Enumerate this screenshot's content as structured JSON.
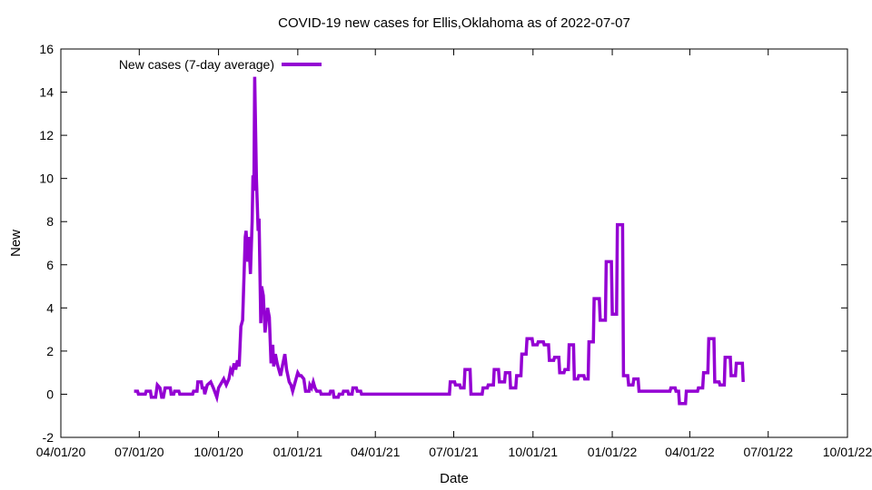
{
  "chart_data": {
    "type": "line",
    "title": "COVID-19 new cases for Ellis,Oklahoma as of 2022-07-07",
    "xlabel": "Date",
    "ylabel": "New",
    "xlim": [
      "2020-04-01",
      "2022-10-01"
    ],
    "ylim": [
      -2,
      16
    ],
    "x_ticks": [
      "04/01/20",
      "07/01/20",
      "10/01/20",
      "01/01/21",
      "04/01/21",
      "07/01/21",
      "10/01/21",
      "01/01/22",
      "04/01/22",
      "07/01/22",
      "10/01/22"
    ],
    "y_ticks": [
      -2,
      0,
      2,
      4,
      6,
      8,
      10,
      12,
      14,
      16
    ],
    "grid": false,
    "legend_position": "top-left",
    "series": [
      {
        "name": "New cases (7-day average)",
        "color": "#9400d3",
        "points": [
          [
            "2020-06-25",
            0.14
          ],
          [
            "2020-06-29",
            0.14
          ],
          [
            "2020-06-30",
            0.0
          ],
          [
            "2020-07-08",
            0.0
          ],
          [
            "2020-07-09",
            0.14
          ],
          [
            "2020-07-14",
            0.14
          ],
          [
            "2020-07-15",
            -0.14
          ],
          [
            "2020-07-20",
            -0.14
          ],
          [
            "2020-07-22",
            0.43
          ],
          [
            "2020-07-25",
            0.29
          ],
          [
            "2020-07-27",
            -0.14
          ],
          [
            "2020-07-29",
            -0.14
          ],
          [
            "2020-07-31",
            0.29
          ],
          [
            "2020-08-06",
            0.29
          ],
          [
            "2020-08-07",
            0.0
          ],
          [
            "2020-08-10",
            0.0
          ],
          [
            "2020-08-11",
            0.14
          ],
          [
            "2020-08-16",
            0.14
          ],
          [
            "2020-08-17",
            0.0
          ],
          [
            "2020-09-01",
            0.0
          ],
          [
            "2020-09-02",
            0.14
          ],
          [
            "2020-09-06",
            0.14
          ],
          [
            "2020-09-07",
            0.57
          ],
          [
            "2020-09-11",
            0.57
          ],
          [
            "2020-09-12",
            0.29
          ],
          [
            "2020-09-14",
            0.29
          ],
          [
            "2020-09-15",
            0.0
          ],
          [
            "2020-09-18",
            0.43
          ],
          [
            "2020-09-22",
            0.57
          ],
          [
            "2020-09-25",
            0.29
          ],
          [
            "2020-09-29",
            -0.14
          ],
          [
            "2020-10-01",
            0.29
          ],
          [
            "2020-10-05",
            0.57
          ],
          [
            "2020-10-07",
            0.71
          ],
          [
            "2020-10-10",
            0.43
          ],
          [
            "2020-10-13",
            0.71
          ],
          [
            "2020-10-15",
            1.14
          ],
          [
            "2020-10-17",
            1.0
          ],
          [
            "2020-10-19",
            1.43
          ],
          [
            "2020-10-21",
            1.14
          ],
          [
            "2020-10-23",
            1.57
          ],
          [
            "2020-10-25",
            1.29
          ],
          [
            "2020-10-27",
            3.14
          ],
          [
            "2020-10-29",
            3.43
          ],
          [
            "2020-11-01",
            7.29
          ],
          [
            "2020-11-02",
            7.57
          ],
          [
            "2020-11-04",
            6.14
          ],
          [
            "2020-11-05",
            7.29
          ],
          [
            "2020-11-07",
            5.57
          ],
          [
            "2020-11-09",
            8.0
          ],
          [
            "2020-11-10",
            10.14
          ],
          [
            "2020-11-11",
            9.43
          ],
          [
            "2020-11-12",
            14.71
          ],
          [
            "2020-11-14",
            10.0
          ],
          [
            "2020-11-16",
            7.57
          ],
          [
            "2020-11-17",
            8.14
          ],
          [
            "2020-11-19",
            3.29
          ],
          [
            "2020-11-20",
            5.0
          ],
          [
            "2020-11-22",
            4.57
          ],
          [
            "2020-11-24",
            2.86
          ],
          [
            "2020-11-27",
            4.0
          ],
          [
            "2020-11-29",
            3.57
          ],
          [
            "2020-12-01",
            1.43
          ],
          [
            "2020-12-03",
            2.29
          ],
          [
            "2020-12-04",
            1.29
          ],
          [
            "2020-12-06",
            1.86
          ],
          [
            "2020-12-08",
            1.43
          ],
          [
            "2020-12-10",
            1.14
          ],
          [
            "2020-12-12",
            0.86
          ],
          [
            "2020-12-14",
            1.29
          ],
          [
            "2020-12-17",
            1.86
          ],
          [
            "2020-12-19",
            1.14
          ],
          [
            "2020-12-22",
            0.57
          ],
          [
            "2020-12-24",
            0.43
          ],
          [
            "2020-12-26",
            0.14
          ],
          [
            "2020-12-29",
            0.57
          ],
          [
            "2021-01-01",
            1.0
          ],
          [
            "2021-01-03",
            0.86
          ],
          [
            "2021-01-05",
            0.86
          ],
          [
            "2021-01-08",
            0.71
          ],
          [
            "2021-01-10",
            0.14
          ],
          [
            "2021-01-14",
            0.14
          ],
          [
            "2021-01-15",
            0.43
          ],
          [
            "2021-01-17",
            0.29
          ],
          [
            "2021-01-19",
            0.57
          ],
          [
            "2021-01-21",
            0.29
          ],
          [
            "2021-01-23",
            0.14
          ],
          [
            "2021-01-27",
            0.14
          ],
          [
            "2021-01-28",
            0.0
          ],
          [
            "2021-02-07",
            0.0
          ],
          [
            "2021-02-08",
            0.14
          ],
          [
            "2021-02-11",
            0.14
          ],
          [
            "2021-02-12",
            -0.14
          ],
          [
            "2021-02-17",
            -0.14
          ],
          [
            "2021-02-18",
            0.0
          ],
          [
            "2021-02-22",
            0.0
          ],
          [
            "2021-02-23",
            0.14
          ],
          [
            "2021-02-28",
            0.14
          ],
          [
            "2021-03-01",
            0.0
          ],
          [
            "2021-03-05",
            0.0
          ],
          [
            "2021-03-06",
            0.29
          ],
          [
            "2021-03-10",
            0.29
          ],
          [
            "2021-03-11",
            0.14
          ],
          [
            "2021-03-15",
            0.14
          ],
          [
            "2021-03-16",
            0.0
          ],
          [
            "2021-06-26",
            0.0
          ],
          [
            "2021-06-27",
            0.57
          ],
          [
            "2021-07-02",
            0.57
          ],
          [
            "2021-07-03",
            0.43
          ],
          [
            "2021-07-08",
            0.43
          ],
          [
            "2021-07-09",
            0.29
          ],
          [
            "2021-07-13",
            0.29
          ],
          [
            "2021-07-14",
            1.14
          ],
          [
            "2021-07-20",
            1.14
          ],
          [
            "2021-07-21",
            0.0
          ],
          [
            "2021-08-03",
            0.0
          ],
          [
            "2021-08-04",
            0.29
          ],
          [
            "2021-08-09",
            0.29
          ],
          [
            "2021-08-10",
            0.43
          ],
          [
            "2021-08-16",
            0.43
          ],
          [
            "2021-08-17",
            1.14
          ],
          [
            "2021-08-22",
            1.14
          ],
          [
            "2021-08-23",
            0.57
          ],
          [
            "2021-08-29",
            0.57
          ],
          [
            "2021-08-30",
            1.0
          ],
          [
            "2021-09-04",
            1.0
          ],
          [
            "2021-09-05",
            0.29
          ],
          [
            "2021-09-11",
            0.29
          ],
          [
            "2021-09-12",
            0.86
          ],
          [
            "2021-09-17",
            0.86
          ],
          [
            "2021-09-18",
            1.86
          ],
          [
            "2021-09-23",
            1.86
          ],
          [
            "2021-09-24",
            2.57
          ],
          [
            "2021-09-30",
            2.57
          ],
          [
            "2021-10-01",
            2.29
          ],
          [
            "2021-10-06",
            2.29
          ],
          [
            "2021-10-07",
            2.43
          ],
          [
            "2021-10-13",
            2.43
          ],
          [
            "2021-10-14",
            2.29
          ],
          [
            "2021-10-19",
            2.29
          ],
          [
            "2021-10-20",
            1.57
          ],
          [
            "2021-10-25",
            1.57
          ],
          [
            "2021-10-26",
            1.71
          ],
          [
            "2021-10-31",
            1.71
          ],
          [
            "2021-11-01",
            1.0
          ],
          [
            "2021-11-06",
            1.0
          ],
          [
            "2021-11-07",
            1.14
          ],
          [
            "2021-11-11",
            1.14
          ],
          [
            "2021-11-12",
            2.29
          ],
          [
            "2021-11-17",
            2.29
          ],
          [
            "2021-11-18",
            0.71
          ],
          [
            "2021-11-22",
            0.71
          ],
          [
            "2021-11-23",
            0.86
          ],
          [
            "2021-11-29",
            0.86
          ],
          [
            "2021-11-30",
            0.71
          ],
          [
            "2021-12-04",
            0.71
          ],
          [
            "2021-12-05",
            2.43
          ],
          [
            "2021-12-10",
            2.43
          ],
          [
            "2021-12-11",
            4.43
          ],
          [
            "2021-12-17",
            4.43
          ],
          [
            "2021-12-18",
            3.43
          ],
          [
            "2021-12-24",
            3.43
          ],
          [
            "2021-12-25",
            6.14
          ],
          [
            "2021-12-31",
            6.14
          ],
          [
            "2022-01-01",
            3.71
          ],
          [
            "2022-01-06",
            3.71
          ],
          [
            "2022-01-07",
            7.86
          ],
          [
            "2022-01-13",
            7.86
          ],
          [
            "2022-01-14",
            0.86
          ],
          [
            "2022-01-19",
            0.86
          ],
          [
            "2022-01-20",
            0.43
          ],
          [
            "2022-01-25",
            0.43
          ],
          [
            "2022-01-26",
            0.71
          ],
          [
            "2022-01-31",
            0.71
          ],
          [
            "2022-02-01",
            0.14
          ],
          [
            "2022-03-09",
            0.14
          ],
          [
            "2022-03-10",
            0.29
          ],
          [
            "2022-03-15",
            0.29
          ],
          [
            "2022-03-16",
            0.14
          ],
          [
            "2022-03-19",
            0.14
          ],
          [
            "2022-03-20",
            -0.43
          ],
          [
            "2022-03-27",
            -0.43
          ],
          [
            "2022-03-28",
            0.14
          ],
          [
            "2022-04-10",
            0.14
          ],
          [
            "2022-04-11",
            0.29
          ],
          [
            "2022-04-16",
            0.29
          ],
          [
            "2022-04-17",
            1.0
          ],
          [
            "2022-04-22",
            1.0
          ],
          [
            "2022-04-23",
            2.57
          ],
          [
            "2022-04-29",
            2.57
          ],
          [
            "2022-04-30",
            0.57
          ],
          [
            "2022-05-05",
            0.57
          ],
          [
            "2022-05-06",
            0.43
          ],
          [
            "2022-05-11",
            0.43
          ],
          [
            "2022-05-12",
            1.71
          ],
          [
            "2022-05-18",
            1.71
          ],
          [
            "2022-05-19",
            0.86
          ],
          [
            "2022-05-24",
            0.86
          ],
          [
            "2022-05-25",
            1.43
          ],
          [
            "2022-06-01",
            1.43
          ],
          [
            "2022-06-02",
            0.57
          ]
        ]
      }
    ]
  }
}
